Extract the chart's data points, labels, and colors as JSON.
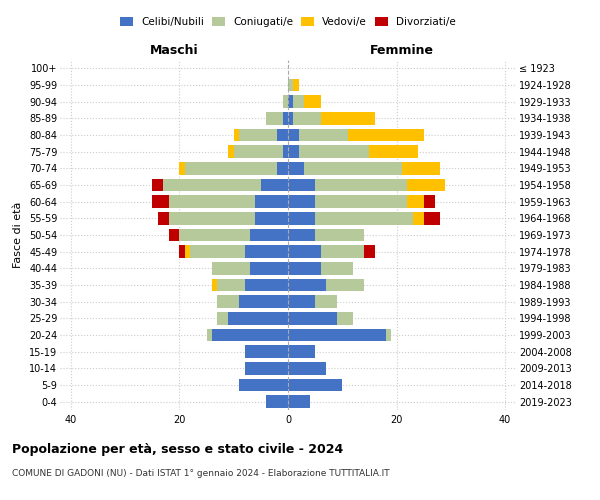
{
  "age_groups": [
    "0-4",
    "5-9",
    "10-14",
    "15-19",
    "20-24",
    "25-29",
    "30-34",
    "35-39",
    "40-44",
    "45-49",
    "50-54",
    "55-59",
    "60-64",
    "65-69",
    "70-74",
    "75-79",
    "80-84",
    "85-89",
    "90-94",
    "95-99",
    "100+"
  ],
  "birth_years": [
    "2019-2023",
    "2014-2018",
    "2009-2013",
    "2004-2008",
    "1999-2003",
    "1994-1998",
    "1989-1993",
    "1984-1988",
    "1979-1983",
    "1974-1978",
    "1969-1973",
    "1964-1968",
    "1959-1963",
    "1954-1958",
    "1949-1953",
    "1944-1948",
    "1939-1943",
    "1934-1938",
    "1929-1933",
    "1924-1928",
    "≤ 1923"
  ],
  "maschi": {
    "celibi": [
      4,
      9,
      8,
      8,
      14,
      11,
      9,
      8,
      7,
      8,
      7,
      6,
      6,
      5,
      2,
      1,
      2,
      1,
      0,
      0,
      0
    ],
    "coniugati": [
      0,
      0,
      0,
      0,
      1,
      2,
      4,
      5,
      7,
      10,
      13,
      16,
      16,
      18,
      17,
      9,
      7,
      3,
      1,
      0,
      0
    ],
    "vedovi": [
      0,
      0,
      0,
      0,
      0,
      0,
      0,
      1,
      0,
      1,
      0,
      0,
      0,
      0,
      1,
      1,
      1,
      0,
      0,
      0,
      0
    ],
    "divorziati": [
      0,
      0,
      0,
      0,
      0,
      0,
      0,
      0,
      0,
      1,
      2,
      2,
      3,
      2,
      0,
      0,
      0,
      0,
      0,
      0,
      0
    ]
  },
  "femmine": {
    "nubili": [
      4,
      10,
      7,
      5,
      18,
      9,
      5,
      7,
      6,
      6,
      5,
      5,
      5,
      5,
      3,
      2,
      2,
      1,
      1,
      0,
      0
    ],
    "coniugate": [
      0,
      0,
      0,
      0,
      1,
      3,
      4,
      7,
      6,
      8,
      9,
      18,
      17,
      17,
      18,
      13,
      9,
      5,
      2,
      1,
      0
    ],
    "vedove": [
      0,
      0,
      0,
      0,
      0,
      0,
      0,
      0,
      0,
      0,
      0,
      2,
      3,
      7,
      7,
      9,
      14,
      10,
      3,
      1,
      0
    ],
    "divorziate": [
      0,
      0,
      0,
      0,
      0,
      0,
      0,
      0,
      0,
      2,
      0,
      3,
      2,
      0,
      0,
      0,
      0,
      0,
      0,
      0,
      0
    ]
  },
  "colors": {
    "celibe_nubile": "#4472c4",
    "coniugato": "#b5c99a",
    "vedovo": "#ffc000",
    "divorziato": "#c00000"
  },
  "xlim": 42,
  "title": "Popolazione per età, sesso e stato civile - 2024",
  "subtitle": "COMUNE DI GADONI (NU) - Dati ISTAT 1° gennaio 2024 - Elaborazione TUTTITALIA.IT",
  "ylabel_left": "Fasce di età",
  "xlabel_left": "Maschi",
  "xlabel_right": "Femmine",
  "anni_nascita_color": "#e07000"
}
